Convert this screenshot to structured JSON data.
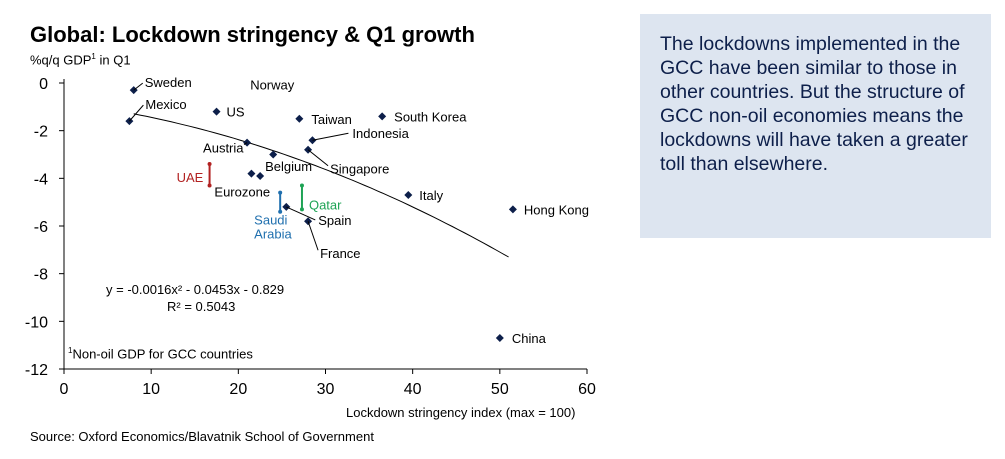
{
  "chart_data": {
    "type": "scatter",
    "title": "Global: Lockdown stringency & Q1 growth",
    "ylabel_main": "%q/q GDP",
    "ylabel_sup": "1",
    "ylabel_tail": " in Q1",
    "xlabel": "Lockdown stringency index (max = 100)",
    "xlim": [
      0,
      60
    ],
    "ylim": [
      -12,
      0
    ],
    "xticks": [
      0,
      10,
      20,
      30,
      40,
      50,
      60
    ],
    "yticks": [
      0,
      -2,
      -4,
      -6,
      -8,
      -10,
      -12
    ],
    "points": [
      {
        "label": "Sweden",
        "x": 8.0,
        "y": -0.3
      },
      {
        "label": "US",
        "x": 17.5,
        "y": -1.2
      },
      {
        "label": "Mexico",
        "x": 7.5,
        "y": -1.6
      },
      {
        "label": "Norway",
        "x": 24.0,
        "y": -3.0
      },
      {
        "label": "Taiwan",
        "x": 27.0,
        "y": -1.5
      },
      {
        "label": "South Korea",
        "x": 36.5,
        "y": -1.4
      },
      {
        "label": "Austria",
        "x": 21.0,
        "y": -2.5
      },
      {
        "label": "Indonesia",
        "x": 28.5,
        "y": -2.4
      },
      {
        "label": "Singapore",
        "x": 28.0,
        "y": -2.8
      },
      {
        "label": "Belgium",
        "x": 22.5,
        "y": -3.9
      },
      {
        "label": "Eurozone",
        "x": 21.5,
        "y": -3.8
      },
      {
        "label": "Italy",
        "x": 39.5,
        "y": -4.7
      },
      {
        "label": "Spain",
        "x": 25.5,
        "y": -5.2
      },
      {
        "label": "France",
        "x": 28.0,
        "y": -5.8
      },
      {
        "label": "Hong Kong",
        "x": 51.5,
        "y": -5.3
      },
      {
        "label": "China",
        "x": 50.0,
        "y": -10.7
      }
    ],
    "ranges": [
      {
        "label": "UAE",
        "x": 16.7,
        "y_top": -3.4,
        "y_bottom": -4.3,
        "color": "#b22222"
      },
      {
        "label": "Qatar",
        "x": 27.3,
        "y_top": -4.3,
        "y_bottom": -5.3,
        "color": "#1ea355"
      },
      {
        "label": "Saudi Arabia",
        "label_lines": [
          "Saudi",
          "Arabia"
        ],
        "x": 24.8,
        "y_top": -4.6,
        "y_bottom": -5.4,
        "color": "#1f6fae"
      }
    ],
    "trendline": {
      "a": -0.0016,
      "b": -0.0453,
      "c": -0.829,
      "x_start": 8,
      "x_end": 51
    },
    "equation_text": "y = -0.0016x² - 0.0453x - 0.829",
    "r2_text": "R² = 0.5043",
    "point_color": "#0d1f4a"
  },
  "footnote": {
    "sup": "1",
    "text": "Non-oil GDP for GCC countries"
  },
  "source": "Source: Oxford Economics/Blavatnik School of Government",
  "sidebar": {
    "text": "The lockdowns implemented in the GCC have been similar to those in other countries. But the structure of GCC non-oil economies means the lockdowns will have taken a greater toll than elsewhere."
  }
}
